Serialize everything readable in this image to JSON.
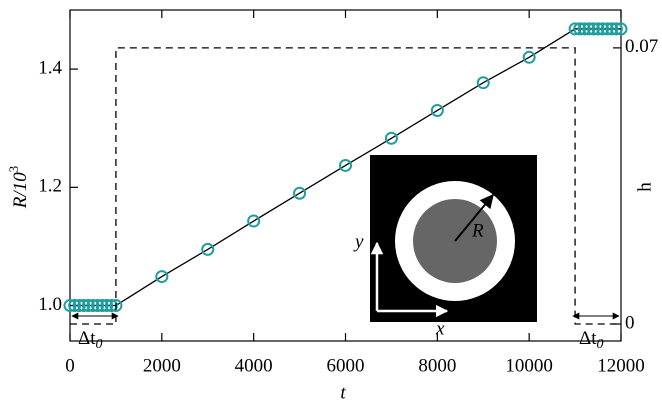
{
  "chart_data": {
    "type": "line",
    "x_label": "t",
    "y_label": {
      "text": "R/10",
      "superscript": "3"
    },
    "y2_label": "h",
    "xlim": [
      0,
      12000
    ],
    "xticks": [
      0,
      2000,
      4000,
      6000,
      8000,
      10000,
      12000
    ],
    "ylim": [
      0.94,
      1.5
    ],
    "yticks": [
      {
        "value": 1,
        "label": "1.0"
      },
      1.2,
      1.4
    ],
    "y2lim": [
      -0.0043,
      0.0796
    ],
    "y2ticks": [
      0,
      0.07
    ],
    "series": [
      {
        "color": "#1f9e9e",
        "marker": "circle",
        "x": [
          0,
          100,
          200,
          300,
          400,
          500,
          600,
          700,
          800,
          900,
          1000,
          2000,
          3000,
          4000,
          5000,
          6000,
          7000,
          8000,
          9000,
          10000,
          11000,
          11100,
          11200,
          11300,
          11400,
          11500,
          11600,
          11700,
          11800,
          11900,
          12000
        ],
        "values": [
          1.0,
          1.0,
          1.0,
          1.0,
          1.0,
          1.0,
          1.0,
          1.0,
          1.0,
          1.0,
          1.0,
          1.049,
          1.095,
          1.143,
          1.19,
          1.237,
          1.283,
          1.33,
          1.377,
          1.42,
          1.468,
          1.468,
          1.468,
          1.468,
          1.468,
          1.468,
          1.468,
          1.468,
          1.468,
          1.468,
          1.468
        ]
      },
      {
        "color": "#000000",
        "axis": "y2",
        "dashed": true,
        "x": [
          0,
          1000,
          1000,
          11000,
          11000,
          12000
        ],
        "values": [
          0,
          0,
          0.07,
          0.07,
          0,
          0
        ]
      }
    ],
    "annotations": [
      {
        "text": "Δt",
        "subscript": "0"
      },
      {
        "text": "Δt",
        "subscript": "0"
      }
    ],
    "inset": {
      "x_axis": "x",
      "y_axis": "y",
      "radius": "R"
    }
  }
}
